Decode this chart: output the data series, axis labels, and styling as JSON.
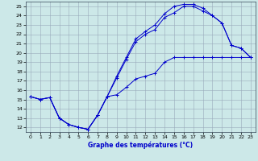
{
  "xlabel": "Graphe des températures (°C)",
  "xlim": [
    -0.5,
    23.5
  ],
  "ylim": [
    11.5,
    25.5
  ],
  "xticks": [
    0,
    1,
    2,
    3,
    4,
    5,
    6,
    7,
    8,
    9,
    10,
    11,
    12,
    13,
    14,
    15,
    16,
    17,
    18,
    19,
    20,
    21,
    22,
    23
  ],
  "yticks": [
    12,
    13,
    14,
    15,
    16,
    17,
    18,
    19,
    20,
    21,
    22,
    23,
    24,
    25
  ],
  "background_color": "#cce8e8",
  "grid_color": "#99aabb",
  "line_color": "#0000cc",
  "line1_y": [
    15.3,
    15.0,
    15.2,
    13.0,
    12.3,
    12.0,
    11.8,
    13.3,
    15.3,
    17.3,
    19.3,
    21.2,
    22.0,
    22.5,
    23.8,
    24.3,
    25.0,
    25.0,
    24.5,
    24.0,
    23.2,
    20.8,
    20.5,
    19.5
  ],
  "line2_y": [
    15.3,
    15.0,
    15.2,
    13.0,
    12.3,
    12.0,
    11.8,
    13.3,
    15.3,
    17.5,
    19.5,
    21.5,
    22.3,
    23.0,
    24.2,
    25.0,
    25.2,
    25.2,
    24.8,
    24.0,
    23.2,
    20.8,
    20.5,
    19.5
  ],
  "line3_y": [
    15.3,
    15.0,
    15.2,
    13.0,
    12.3,
    12.0,
    11.8,
    13.3,
    15.3,
    15.5,
    16.3,
    17.2,
    17.5,
    17.8,
    19.0,
    19.5,
    19.5,
    19.5,
    19.5,
    19.5,
    19.5,
    19.5,
    19.5,
    19.5
  ]
}
